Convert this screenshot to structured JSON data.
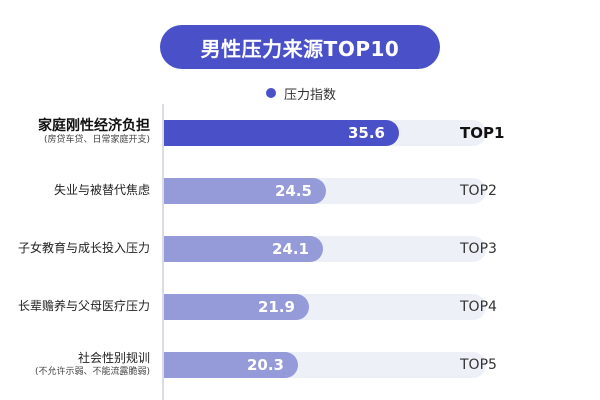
{
  "chart_data": {
    "type": "bar",
    "orientation": "horizontal",
    "title": "男性压力来源TOP10",
    "legend": [
      "压力指数"
    ],
    "categories": [
      "家庭刚性经济负担",
      "失业与被替代焦虑",
      "子女教育与成长投入压力",
      "长辈赡养与父母医疗压力",
      "社会性别规训"
    ],
    "sublabels": [
      "(房贷车贷、日常家庭开支)",
      "",
      "",
      "",
      "(不允许示弱、不能流露脆弱)"
    ],
    "ranks": [
      "TOP1",
      "TOP2",
      "TOP3",
      "TOP4",
      "TOP5"
    ],
    "values": [
      35.6,
      24.5,
      24.1,
      21.9,
      20.3
    ],
    "value_labels": [
      "35.6",
      "24.5",
      "24.1",
      "21.9",
      "20.3"
    ],
    "xlim": [
      0,
      45
    ],
    "colors": {
      "primary": "#4a50c8",
      "secondary": "#959ad8",
      "track": "#eef0f7"
    }
  }
}
